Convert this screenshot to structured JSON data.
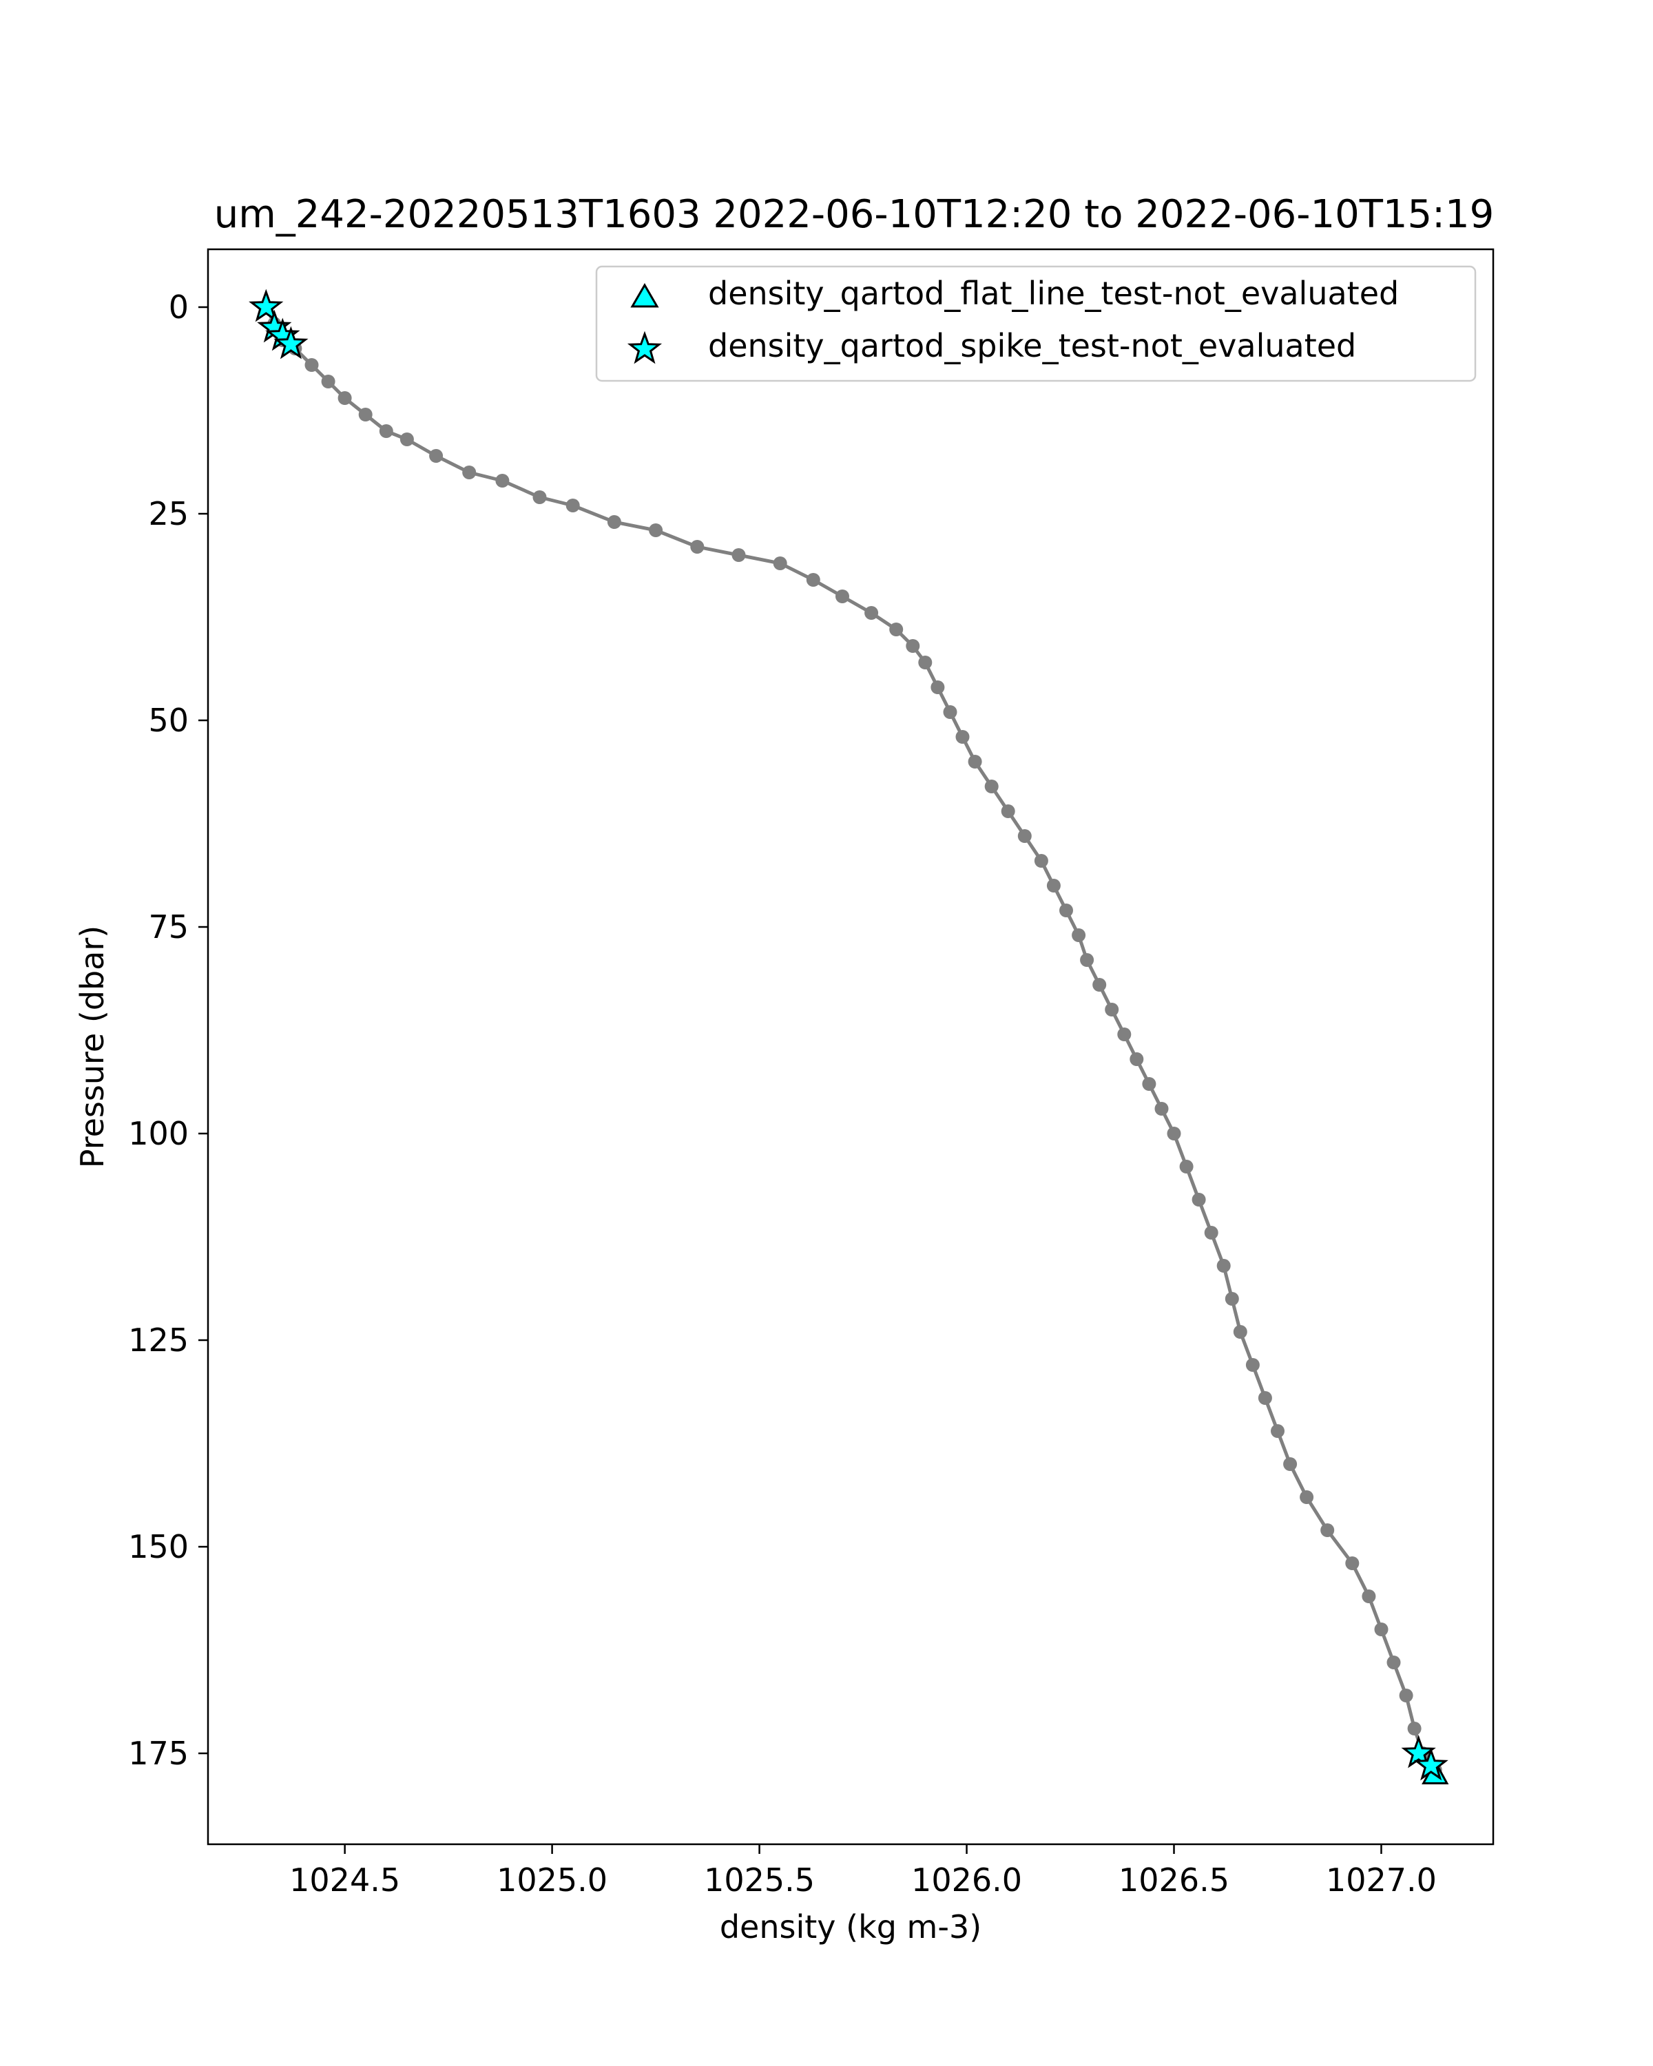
{
  "chart_data": {
    "type": "scatter",
    "title": "um_242-20220513T1603 2022-06-10T12:20 to 2022-06-10T15:19",
    "xlabel": "density (kg m-3)",
    "ylabel": "Pressure (dbar)",
    "xlim": [
      1024.17,
      1027.27
    ],
    "ylim": [
      186,
      -7
    ],
    "y_inverted": true,
    "grid": false,
    "legend_position": "top-right",
    "x_ticks": [
      1024.5,
      1025.0,
      1025.5,
      1026.0,
      1026.5,
      1027.0
    ],
    "x_tick_labels": [
      "1024.5",
      "1025.0",
      "1025.5",
      "1026.0",
      "1026.5",
      "1027.0"
    ],
    "y_ticks": [
      0,
      25,
      50,
      75,
      100,
      125,
      150,
      175
    ],
    "y_tick_labels": [
      "0",
      "25",
      "50",
      "75",
      "100",
      "125",
      "150",
      "175"
    ],
    "colors": {
      "profile": "#808080",
      "flag_fill": "#00ffff",
      "flag_edge": "#000000"
    },
    "series": [
      {
        "kind": "profile",
        "marker": "circle",
        "color": "#808080",
        "points": [
          [
            1024.31,
            0
          ],
          [
            1024.33,
            2
          ],
          [
            1024.35,
            4
          ],
          [
            1024.38,
            5
          ],
          [
            1024.42,
            7
          ],
          [
            1024.46,
            9
          ],
          [
            1024.5,
            11
          ],
          [
            1024.55,
            13
          ],
          [
            1024.6,
            15
          ],
          [
            1024.65,
            16
          ],
          [
            1024.72,
            18
          ],
          [
            1024.8,
            20
          ],
          [
            1024.88,
            21
          ],
          [
            1024.97,
            23
          ],
          [
            1025.05,
            24
          ],
          [
            1025.15,
            26
          ],
          [
            1025.25,
            27
          ],
          [
            1025.35,
            29
          ],
          [
            1025.45,
            30
          ],
          [
            1025.55,
            31
          ],
          [
            1025.63,
            33
          ],
          [
            1025.7,
            35
          ],
          [
            1025.77,
            37
          ],
          [
            1025.83,
            39
          ],
          [
            1025.87,
            41
          ],
          [
            1025.9,
            43
          ],
          [
            1025.93,
            46
          ],
          [
            1025.96,
            49
          ],
          [
            1025.99,
            52
          ],
          [
            1026.02,
            55
          ],
          [
            1026.06,
            58
          ],
          [
            1026.1,
            61
          ],
          [
            1026.14,
            64
          ],
          [
            1026.18,
            67
          ],
          [
            1026.21,
            70
          ],
          [
            1026.24,
            73
          ],
          [
            1026.27,
            76
          ],
          [
            1026.29,
            79
          ],
          [
            1026.32,
            82
          ],
          [
            1026.35,
            85
          ],
          [
            1026.38,
            88
          ],
          [
            1026.41,
            91
          ],
          [
            1026.44,
            94
          ],
          [
            1026.47,
            97
          ],
          [
            1026.5,
            100
          ],
          [
            1026.53,
            104
          ],
          [
            1026.56,
            108
          ],
          [
            1026.59,
            112
          ],
          [
            1026.62,
            116
          ],
          [
            1026.64,
            120
          ],
          [
            1026.66,
            124
          ],
          [
            1026.69,
            128
          ],
          [
            1026.72,
            132
          ],
          [
            1026.75,
            136
          ],
          [
            1026.78,
            140
          ],
          [
            1026.82,
            144
          ],
          [
            1026.87,
            148
          ],
          [
            1026.93,
            152
          ],
          [
            1026.97,
            156
          ],
          [
            1027.0,
            160
          ],
          [
            1027.03,
            164
          ],
          [
            1027.06,
            168
          ],
          [
            1027.08,
            172
          ],
          [
            1027.1,
            175
          ],
          [
            1027.13,
            177
          ]
        ]
      },
      {
        "name": "density_qartod_flat_line_test-not_evaluated",
        "marker": "triangle",
        "color": "#00ffff",
        "points": [
          [
            1027.13,
            177.5
          ]
        ]
      },
      {
        "name": "density_qartod_spike_test-not_evaluated",
        "marker": "star",
        "color": "#00ffff",
        "points": [
          [
            1024.31,
            0.0
          ],
          [
            1024.33,
            2.5
          ],
          [
            1024.35,
            3.5
          ],
          [
            1024.37,
            4.5
          ],
          [
            1027.09,
            175.0
          ],
          [
            1027.12,
            176.5
          ]
        ]
      }
    ]
  }
}
